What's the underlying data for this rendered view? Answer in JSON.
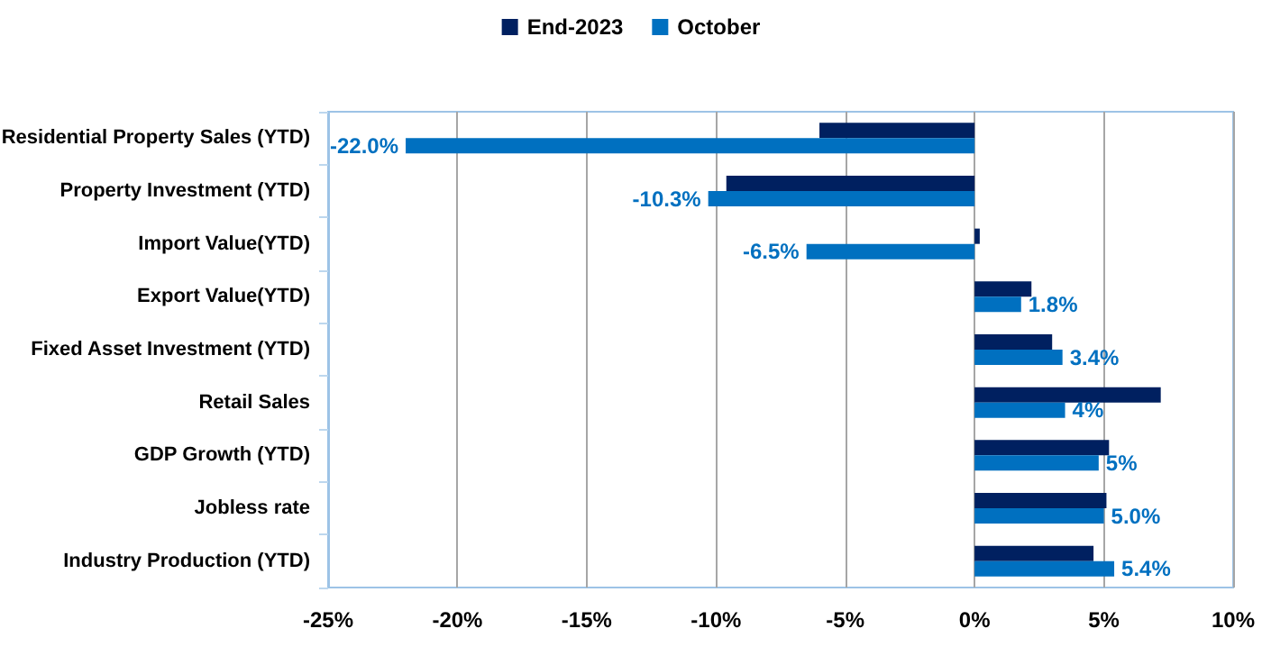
{
  "chart_data": {
    "type": "bar",
    "orientation": "horizontal",
    "categories": [
      "Residential Property Sales (YTD)",
      "Property Investment (YTD)",
      "Import Value(YTD)",
      "Export Value(YTD)",
      "Fixed Asset Investment (YTD)",
      "Retail Sales",
      "GDP Growth (YTD)",
      "Jobless rate",
      "Industry Production (YTD)"
    ],
    "series": [
      {
        "name": "End-2023",
        "color": "#002060",
        "values": [
          -6.0,
          -9.6,
          0.2,
          2.2,
          3.0,
          7.2,
          5.2,
          5.1,
          4.6
        ]
      },
      {
        "name": "October",
        "color": "#0070c0",
        "values": [
          -22.0,
          -10.3,
          -6.5,
          1.8,
          3.4,
          3.5,
          4.8,
          5.0,
          5.4
        ],
        "value_labels": [
          "-22.0%",
          "-10.3%",
          "-6.5%",
          "1.8%",
          "3.4%",
          "4%",
          "5%",
          "5.0%",
          "5.4%"
        ]
      }
    ],
    "xlim": [
      -25,
      10
    ],
    "xticks": [
      {
        "value": -25,
        "label": "-25%"
      },
      {
        "value": -20,
        "label": "-20%"
      },
      {
        "value": -15,
        "label": "-15%"
      },
      {
        "value": -10,
        "label": "-10%"
      },
      {
        "value": -5,
        "label": "-5%"
      },
      {
        "value": 0,
        "label": "0%"
      },
      {
        "value": 5,
        "label": "5%"
      },
      {
        "value": 10,
        "label": "10%"
      }
    ],
    "grid": "x",
    "legend": "top"
  }
}
